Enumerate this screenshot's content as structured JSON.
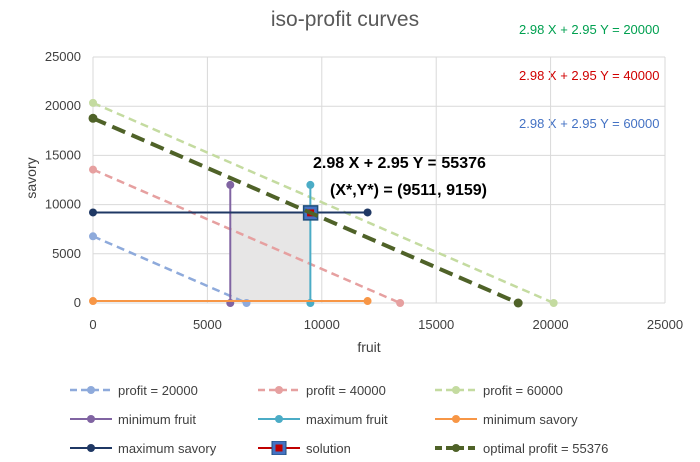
{
  "chart_data": {
    "type": "line",
    "title": "iso-profit curves",
    "xlabel": "fruit",
    "ylabel": "savory",
    "xlim": [
      0,
      25000
    ],
    "ylim": [
      0,
      25000
    ],
    "xticks": [
      "0",
      "5000",
      "10000",
      "15000",
      "20000",
      "25000"
    ],
    "yticks": [
      "0",
      "5000",
      "10000",
      "15000",
      "20000",
      "25000"
    ],
    "grid": true,
    "legend_position": "bottom",
    "series": [
      {
        "name": "profit = 20000",
        "color": "#8eaadb",
        "style": "dashed",
        "points": [
          [
            0,
            6780
          ],
          [
            6711,
            0
          ]
        ]
      },
      {
        "name": "profit = 40000",
        "color": "#e6a0a0",
        "style": "dashed",
        "points": [
          [
            0,
            13559
          ],
          [
            13423,
            0
          ]
        ]
      },
      {
        "name": "profit = 60000",
        "color": "#c4dba0",
        "style": "dashed",
        "points": [
          [
            0,
            20339
          ],
          [
            20134,
            0
          ]
        ]
      },
      {
        "name": "minimum fruit",
        "color": "#8064a2",
        "style": "solid",
        "points": [
          [
            6000,
            0
          ],
          [
            6000,
            12000
          ]
        ]
      },
      {
        "name": "maximum fruit",
        "color": "#4bacc6",
        "style": "solid",
        "points": [
          [
            9500,
            0
          ],
          [
            9500,
            12000
          ]
        ]
      },
      {
        "name": "minimum savory",
        "color": "#f79646",
        "style": "solid",
        "points": [
          [
            0,
            200
          ],
          [
            12000,
            200
          ]
        ]
      },
      {
        "name": "maximum savory",
        "color": "#1f3864",
        "style": "solid",
        "points": [
          [
            0,
            9200
          ],
          [
            12000,
            9200
          ]
        ]
      },
      {
        "name": "solution",
        "color": "#c00000",
        "style": "marker",
        "points": [
          [
            9511,
            9159
          ]
        ]
      },
      {
        "name": "optimal profit = 55376",
        "color": "#4f6228",
        "style": "dashed-bold",
        "points": [
          [
            0,
            18772
          ],
          [
            18583,
            0
          ]
        ]
      }
    ],
    "feasible_region": [
      [
        6000,
        200
      ],
      [
        9500,
        200
      ],
      [
        9500,
        9200
      ],
      [
        6000,
        9200
      ]
    ],
    "equations": [
      {
        "text": "2.98 X + 2.95 Y = 20000",
        "color": "#00a050"
      },
      {
        "text": "2.98 X + 2.95 Y = 40000",
        "color": "#d00000"
      },
      {
        "text": "2.98 X + 2.95 Y = 60000",
        "color": "#4472c4"
      }
    ],
    "annotations": [
      "2.98 X + 2.95 Y = 55376",
      "(X*,Y*) = (9511, 9159)"
    ]
  }
}
